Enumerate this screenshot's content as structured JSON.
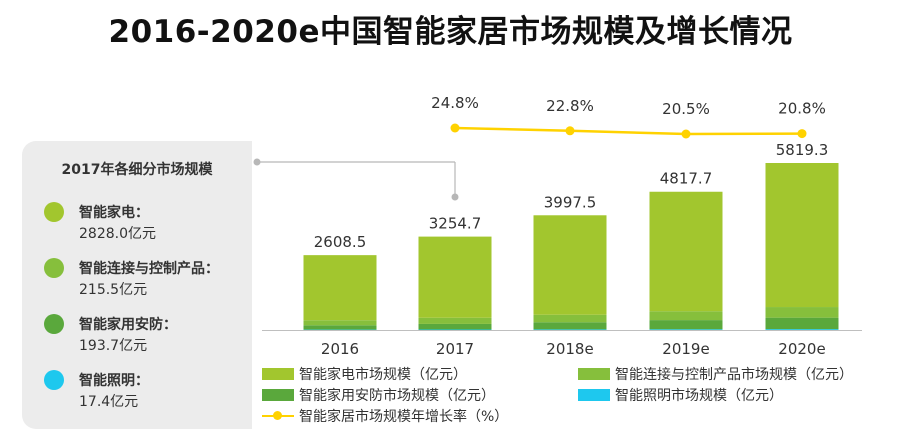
{
  "title": "2016-2020e中国智能家居市场规模及增长情况",
  "panel": {
    "title": "2017年各细分市场规模",
    "items": [
      {
        "name": "智能家电：",
        "value": "2828.0亿元",
        "color": "#a2c62e"
      },
      {
        "name": "智能连接与控制产品：",
        "value": "215.5亿元",
        "color": "#86bf3c"
      },
      {
        "name": "智能家用安防：",
        "value": "193.7亿元",
        "color": "#5aa83c"
      },
      {
        "name": "智能照明：",
        "value": "17.4亿元",
        "color": "#1ec8ee"
      }
    ]
  },
  "legend": {
    "appliances": "智能家电市场规模（亿元）",
    "connect": "智能连接与控制产品市场规模（亿元）",
    "security": "智能家用安防市场规模（亿元）",
    "lighting": "智能照明市场规模（亿元）",
    "growth": "智能家居市场规模年增长率（%）"
  },
  "chart_data": {
    "type": "bar",
    "stacked": true,
    "title": "2016-2020e中国智能家居市场规模及增长情况",
    "categories": [
      "2016",
      "2017",
      "2018e",
      "2019e",
      "2020e"
    ],
    "totals": [
      2608.5,
      3254.7,
      3997.5,
      4817.7,
      5819.3
    ],
    "total_labels": [
      "2608.5",
      "3254.7",
      "3997.5",
      "4817.7",
      "5819.3"
    ],
    "series": [
      {
        "name": "智能照明市场规模（亿元）",
        "color": "#1ec8ee",
        "values": [
          14,
          17.4,
          21,
          25,
          30
        ]
      },
      {
        "name": "智能家用安防市场规模（亿元）",
        "color": "#5aa83c",
        "values": [
          150,
          193.7,
          250,
          320,
          400
        ]
      },
      {
        "name": "智能连接与控制产品市场规模（亿元）",
        "color": "#86bf3c",
        "values": [
          175,
          215.5,
          260,
          310,
          370
        ]
      },
      {
        "name": "智能家电市场规模（亿元）",
        "color": "#a2c62e",
        "values": [
          2269.5,
          2828.0,
          3466.5,
          4162.7,
          5019.3
        ]
      }
    ],
    "growth": {
      "name": "智能家居市场规模年增长率（%）",
      "color": "#ffd200",
      "categories": [
        "2017",
        "2018e",
        "2019e",
        "2020e"
      ],
      "values": [
        24.8,
        22.8,
        20.5,
        20.8
      ],
      "labels": [
        "24.8%",
        "22.8%",
        "20.5%",
        "20.8%"
      ]
    },
    "ylim": [
      0,
      6000
    ],
    "grid": false,
    "legend_position": "bottom"
  }
}
